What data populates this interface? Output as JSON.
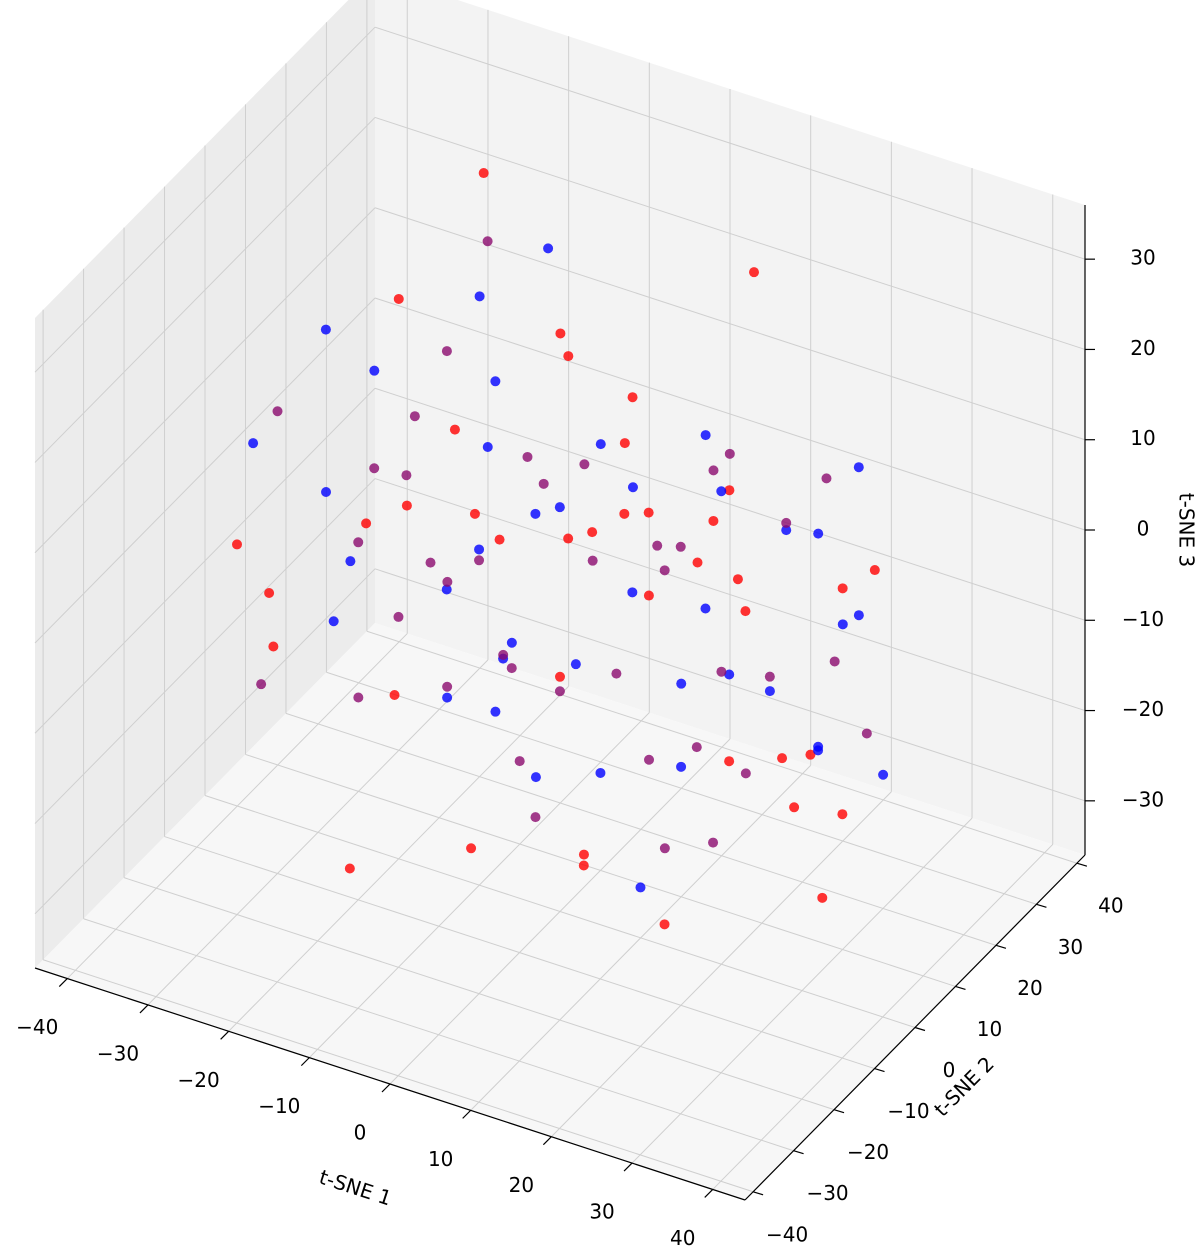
{
  "chart_data": {
    "type": "scatter3d",
    "xlabel": "t-SNE 1",
    "ylabel": "t-SNE 2",
    "zlabel": "t-SNE 3",
    "xlim": [
      -44,
      44
    ],
    "ylim": [
      -42,
      42
    ],
    "zlim": [
      -36,
      36
    ],
    "xticks": [
      {
        "value": -40,
        "label": "−40"
      },
      {
        "value": -30,
        "label": "−30"
      },
      {
        "value": -20,
        "label": "−20"
      },
      {
        "value": -10,
        "label": "−10"
      },
      0,
      10,
      20,
      30,
      40
    ],
    "yticks": [
      {
        "value": -40,
        "label": "−40"
      },
      {
        "value": -30,
        "label": "−30"
      },
      {
        "value": -20,
        "label": "−20"
      },
      {
        "value": -10,
        "label": "−10"
      },
      0,
      10,
      20,
      30,
      40
    ],
    "zticks": [
      {
        "value": -30,
        "label": "−30"
      },
      {
        "value": -20,
        "label": "−20"
      },
      {
        "value": -10,
        "label": "−10"
      },
      0,
      10,
      20,
      30
    ],
    "grid": true,
    "series": [
      {
        "color": "#ff0000",
        "x": [
          -30,
          -28,
          -25,
          -22,
          -18,
          -15,
          -12,
          -10,
          -8,
          -5,
          -3,
          0,
          2,
          5,
          8,
          10,
          12,
          15,
          18,
          20,
          22,
          25,
          28,
          30,
          32,
          35,
          -20,
          -6,
          4,
          14,
          24,
          -26,
          -14,
          6,
          16,
          26,
          -2,
          11,
          19,
          33
        ],
        "y": [
          -20,
          -15,
          10,
          25,
          -5,
          30,
          -28,
          5,
          18,
          -12,
          22,
          0,
          -25,
          12,
          -8,
          28,
          -18,
          8,
          -30,
          15,
          -2,
          20,
          -10,
          5,
          -22,
          0,
          -32,
          -14,
          26,
          -6,
          10,
          14,
          -20,
          32,
          -16,
          -26,
          6,
          -4,
          24,
          12
        ],
        "z": [
          5,
          -8,
          20,
          28,
          -15,
          10,
          -22,
          0,
          15,
          -25,
          5,
          -10,
          20,
          -5,
          12,
          25,
          -18,
          8,
          -12,
          -20,
          18,
          -2,
          10,
          -28,
          0,
          -15,
          8,
          22,
          -8,
          15,
          -22,
          -5,
          12,
          -12,
          20,
          -18,
          2,
          26,
          -24,
          6
        ]
      },
      {
        "color": "#0000ff",
        "x": [
          -32,
          -27,
          -23,
          -19,
          -16,
          -13,
          -9,
          -7,
          -4,
          -1,
          1,
          3,
          6,
          9,
          11,
          13,
          16,
          19,
          21,
          23,
          26,
          29,
          31,
          34,
          -24,
          -11,
          -2,
          7,
          17,
          27,
          -29,
          -17,
          -5,
          8,
          20,
          36,
          -21,
          -8,
          12,
          24
        ],
        "y": [
          12,
          -22,
          28,
          -8,
          20,
          -30,
          15,
          -2,
          26,
          -18,
          8,
          30,
          -12,
          18,
          -28,
          4,
          24,
          -20,
          10,
          -6,
          28,
          -16,
          2,
          -4,
          -10,
          32,
          -24,
          16,
          -14,
          20,
          0,
          6,
          -6,
          -30,
          30,
          -8,
          22,
          10,
          -20,
          26
        ],
        "z": [
          -12,
          18,
          -4,
          22,
          -20,
          6,
          28,
          -15,
          -2,
          12,
          -24,
          4,
          16,
          -8,
          24,
          -18,
          0,
          14,
          -10,
          20,
          -26,
          6,
          14,
          -6,
          26,
          -2,
          10,
          -16,
          -22,
          12,
          2,
          -20,
          24,
          8,
          -12,
          -4,
          16,
          -28,
          4,
          -8
        ]
      },
      {
        "color": "#8b0a6e",
        "x": [
          -31,
          -26,
          -24,
          -21,
          -17,
          -14,
          -11,
          -8,
          -6,
          -4,
          -1,
          1,
          3,
          5,
          7,
          9,
          12,
          14,
          17,
          20,
          23,
          26,
          29,
          31,
          -18,
          -9,
          0,
          10,
          21,
          -27,
          -15,
          -3,
          6,
          13,
          25,
          -23,
          -12,
          4,
          18,
          28
        ],
        "y": [
          -8,
          24,
          -26,
          6,
          16,
          -12,
          30,
          -22,
          2,
          14,
          -30,
          20,
          -6,
          -18,
          28,
          -24,
          14,
          -2,
          22,
          -14,
          6,
          -22,
          18,
          -28,
          8,
          -10,
          -20,
          -6,
          26,
          4,
          -16,
          30,
          -26,
          20,
          16,
          -4,
          12,
          -12,
          4,
          -18
        ],
        "z": [
          14,
          -18,
          -6,
          10,
          26,
          -2,
          -14,
          20,
          -22,
          6,
          16,
          -28,
          -8,
          24,
          4,
          -12,
          10,
          -24,
          2,
          14,
          -6,
          22,
          -16,
          4,
          -20,
          28,
          12,
          -4,
          -14,
          -22,
          16,
          -10,
          6,
          -26,
          12,
          0,
          -18,
          18,
          -6,
          -12
        ]
      }
    ]
  }
}
